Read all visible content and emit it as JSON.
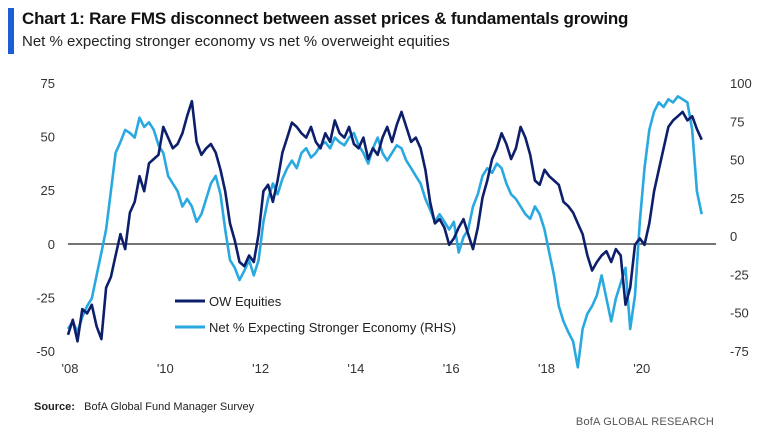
{
  "header": {
    "title": "Chart 1:  Rare FMS disconnect between asset prices & fundamentals growing",
    "subtitle": "Net % expecting stronger economy vs net % overweight equities"
  },
  "footer": {
    "source_label": "Source:",
    "source_text": "BofA Global Fund Manager Survey",
    "brand": "BofA GLOBAL RESEARCH"
  },
  "colors": {
    "accent": "#1a5fd6",
    "ow_equities": "#0d1f6b",
    "economy": "#29a9e0"
  },
  "chart_data": {
    "type": "line",
    "title": "Rare FMS disconnect between asset prices & fundamentals growing",
    "x_ticks": [
      "'08",
      "'10",
      "'12",
      "'14",
      "'16",
      "'18",
      "'20"
    ],
    "y_left_ticks": [
      "75",
      "50",
      "25",
      "0",
      "-25",
      "-50"
    ],
    "y_right_ticks": [
      "100",
      "75",
      "50",
      "25",
      "0",
      "-25",
      "-50",
      "-75"
    ],
    "ylim_left": [
      -50,
      75
    ],
    "ylim_right": [
      -75,
      100
    ],
    "xlim": [
      2008.0,
      2021.6
    ],
    "legend_position": "bottom-left",
    "grid": false,
    "series": [
      {
        "name": "OW Equities",
        "axis": "left",
        "color": "#0d1f6b",
        "points": [
          [
            2008.0,
            -42
          ],
          [
            2008.1,
            -35
          ],
          [
            2008.2,
            -45
          ],
          [
            2008.3,
            -30
          ],
          [
            2008.4,
            -32
          ],
          [
            2008.5,
            -28
          ],
          [
            2008.6,
            -38
          ],
          [
            2008.7,
            -44
          ],
          [
            2008.8,
            -20
          ],
          [
            2008.9,
            -15
          ],
          [
            2009.0,
            -5
          ],
          [
            2009.1,
            5
          ],
          [
            2009.2,
            -2
          ],
          [
            2009.3,
            15
          ],
          [
            2009.4,
            20
          ],
          [
            2009.5,
            32
          ],
          [
            2009.6,
            25
          ],
          [
            2009.7,
            38
          ],
          [
            2009.8,
            40
          ],
          [
            2009.9,
            42
          ],
          [
            2010.0,
            55
          ],
          [
            2010.1,
            50
          ],
          [
            2010.2,
            45
          ],
          [
            2010.3,
            47
          ],
          [
            2010.4,
            52
          ],
          [
            2010.5,
            60
          ],
          [
            2010.6,
            67
          ],
          [
            2010.7,
            48
          ],
          [
            2010.8,
            42
          ],
          [
            2010.9,
            45
          ],
          [
            2011.0,
            47
          ],
          [
            2011.1,
            43
          ],
          [
            2011.2,
            35
          ],
          [
            2011.3,
            25
          ],
          [
            2011.4,
            10
          ],
          [
            2011.5,
            2
          ],
          [
            2011.6,
            -8
          ],
          [
            2011.7,
            -10
          ],
          [
            2011.8,
            -5
          ],
          [
            2011.9,
            -8
          ],
          [
            2012.0,
            5
          ],
          [
            2012.1,
            25
          ],
          [
            2012.2,
            28
          ],
          [
            2012.3,
            20
          ],
          [
            2012.4,
            30
          ],
          [
            2012.5,
            43
          ],
          [
            2012.6,
            50
          ],
          [
            2012.7,
            57
          ],
          [
            2012.8,
            55
          ],
          [
            2012.9,
            52
          ],
          [
            2013.0,
            50
          ],
          [
            2013.1,
            55
          ],
          [
            2013.2,
            48
          ],
          [
            2013.3,
            45
          ],
          [
            2013.4,
            52
          ],
          [
            2013.5,
            48
          ],
          [
            2013.6,
            58
          ],
          [
            2013.7,
            52
          ],
          [
            2013.8,
            50
          ],
          [
            2013.9,
            55
          ],
          [
            2014.0,
            47
          ],
          [
            2014.1,
            45
          ],
          [
            2014.2,
            50
          ],
          [
            2014.3,
            40
          ],
          [
            2014.4,
            45
          ],
          [
            2014.5,
            42
          ],
          [
            2014.6,
            50
          ],
          [
            2014.7,
            55
          ],
          [
            2014.8,
            48
          ],
          [
            2014.9,
            56
          ],
          [
            2015.0,
            62
          ],
          [
            2015.1,
            55
          ],
          [
            2015.2,
            48
          ],
          [
            2015.3,
            50
          ],
          [
            2015.4,
            45
          ],
          [
            2015.5,
            35
          ],
          [
            2015.6,
            20
          ],
          [
            2015.7,
            10
          ],
          [
            2015.8,
            12
          ],
          [
            2015.9,
            8
          ],
          [
            2016.0,
            0
          ],
          [
            2016.1,
            3
          ],
          [
            2016.2,
            8
          ],
          [
            2016.3,
            12
          ],
          [
            2016.4,
            5
          ],
          [
            2016.5,
            -2
          ],
          [
            2016.6,
            8
          ],
          [
            2016.7,
            22
          ],
          [
            2016.8,
            30
          ],
          [
            2016.9,
            40
          ],
          [
            2017.0,
            45
          ],
          [
            2017.1,
            52
          ],
          [
            2017.2,
            47
          ],
          [
            2017.3,
            40
          ],
          [
            2017.4,
            45
          ],
          [
            2017.5,
            55
          ],
          [
            2017.6,
            50
          ],
          [
            2017.7,
            42
          ],
          [
            2017.8,
            30
          ],
          [
            2017.9,
            28
          ],
          [
            2018.0,
            35
          ],
          [
            2018.1,
            32
          ],
          [
            2018.2,
            30
          ],
          [
            2018.3,
            28
          ],
          [
            2018.4,
            20
          ],
          [
            2018.5,
            18
          ],
          [
            2018.6,
            15
          ],
          [
            2018.7,
            10
          ],
          [
            2018.8,
            5
          ],
          [
            2018.9,
            -5
          ],
          [
            2019.0,
            -12
          ],
          [
            2019.1,
            -8
          ],
          [
            2019.2,
            -5
          ],
          [
            2019.3,
            -3
          ],
          [
            2019.4,
            -8
          ],
          [
            2019.5,
            -2
          ],
          [
            2019.6,
            -5
          ],
          [
            2019.7,
            -28
          ],
          [
            2019.8,
            -20
          ],
          [
            2019.9,
            0
          ],
          [
            2020.0,
            3
          ],
          [
            2020.1,
            0
          ],
          [
            2020.2,
            10
          ],
          [
            2020.3,
            25
          ],
          [
            2020.4,
            35
          ],
          [
            2020.5,
            45
          ],
          [
            2020.6,
            55
          ],
          [
            2020.7,
            58
          ],
          [
            2020.8,
            60
          ],
          [
            2020.9,
            62
          ],
          [
            2021.0,
            58
          ],
          [
            2021.1,
            60
          ],
          [
            2021.2,
            54
          ],
          [
            2021.3,
            49
          ]
        ]
      },
      {
        "name": "Net % Expecting Stronger Economy (RHS)",
        "axis": "right",
        "color": "#29a9e0",
        "points": [
          [
            2008.0,
            -60
          ],
          [
            2008.1,
            -55
          ],
          [
            2008.2,
            -62
          ],
          [
            2008.3,
            -52
          ],
          [
            2008.4,
            -45
          ],
          [
            2008.5,
            -40
          ],
          [
            2008.6,
            -25
          ],
          [
            2008.7,
            -10
          ],
          [
            2008.8,
            5
          ],
          [
            2008.9,
            30
          ],
          [
            2009.0,
            55
          ],
          [
            2009.1,
            62
          ],
          [
            2009.2,
            70
          ],
          [
            2009.3,
            68
          ],
          [
            2009.4,
            65
          ],
          [
            2009.5,
            78
          ],
          [
            2009.6,
            72
          ],
          [
            2009.7,
            75
          ],
          [
            2009.8,
            70
          ],
          [
            2009.9,
            60
          ],
          [
            2010.0,
            55
          ],
          [
            2010.1,
            40
          ],
          [
            2010.2,
            35
          ],
          [
            2010.3,
            30
          ],
          [
            2010.4,
            20
          ],
          [
            2010.5,
            25
          ],
          [
            2010.6,
            20
          ],
          [
            2010.7,
            10
          ],
          [
            2010.8,
            15
          ],
          [
            2010.9,
            25
          ],
          [
            2011.0,
            35
          ],
          [
            2011.1,
            40
          ],
          [
            2011.2,
            28
          ],
          [
            2011.3,
            5
          ],
          [
            2011.4,
            -15
          ],
          [
            2011.5,
            -20
          ],
          [
            2011.6,
            -28
          ],
          [
            2011.7,
            -22
          ],
          [
            2011.8,
            -15
          ],
          [
            2011.9,
            -25
          ],
          [
            2012.0,
            -15
          ],
          [
            2012.1,
            10
          ],
          [
            2012.2,
            25
          ],
          [
            2012.3,
            35
          ],
          [
            2012.4,
            28
          ],
          [
            2012.5,
            38
          ],
          [
            2012.6,
            45
          ],
          [
            2012.7,
            50
          ],
          [
            2012.8,
            45
          ],
          [
            2012.9,
            55
          ],
          [
            2013.0,
            58
          ],
          [
            2013.1,
            52
          ],
          [
            2013.2,
            55
          ],
          [
            2013.3,
            60
          ],
          [
            2013.4,
            62
          ],
          [
            2013.5,
            58
          ],
          [
            2013.6,
            65
          ],
          [
            2013.7,
            62
          ],
          [
            2013.8,
            60
          ],
          [
            2013.9,
            65
          ],
          [
            2014.0,
            68
          ],
          [
            2014.1,
            60
          ],
          [
            2014.2,
            55
          ],
          [
            2014.3,
            48
          ],
          [
            2014.4,
            58
          ],
          [
            2014.5,
            65
          ],
          [
            2014.6,
            55
          ],
          [
            2014.7,
            50
          ],
          [
            2014.8,
            55
          ],
          [
            2014.9,
            60
          ],
          [
            2015.0,
            58
          ],
          [
            2015.1,
            50
          ],
          [
            2015.2,
            45
          ],
          [
            2015.3,
            40
          ],
          [
            2015.4,
            35
          ],
          [
            2015.5,
            25
          ],
          [
            2015.6,
            18
          ],
          [
            2015.7,
            10
          ],
          [
            2015.8,
            15
          ],
          [
            2015.9,
            10
          ],
          [
            2016.0,
            5
          ],
          [
            2016.1,
            10
          ],
          [
            2016.2,
            -10
          ],
          [
            2016.3,
            0
          ],
          [
            2016.4,
            5
          ],
          [
            2016.5,
            20
          ],
          [
            2016.6,
            28
          ],
          [
            2016.7,
            40
          ],
          [
            2016.8,
            45
          ],
          [
            2016.9,
            42
          ],
          [
            2017.0,
            48
          ],
          [
            2017.1,
            45
          ],
          [
            2017.2,
            35
          ],
          [
            2017.3,
            28
          ],
          [
            2017.4,
            25
          ],
          [
            2017.5,
            20
          ],
          [
            2017.6,
            15
          ],
          [
            2017.7,
            12
          ],
          [
            2017.8,
            20
          ],
          [
            2017.9,
            15
          ],
          [
            2018.0,
            5
          ],
          [
            2018.1,
            -10
          ],
          [
            2018.2,
            -25
          ],
          [
            2018.3,
            -45
          ],
          [
            2018.4,
            -55
          ],
          [
            2018.5,
            -62
          ],
          [
            2018.6,
            -68
          ],
          [
            2018.7,
            -85
          ],
          [
            2018.8,
            -60
          ],
          [
            2018.9,
            -50
          ],
          [
            2019.0,
            -45
          ],
          [
            2019.1,
            -38
          ],
          [
            2019.2,
            -25
          ],
          [
            2019.3,
            -40
          ],
          [
            2019.4,
            -55
          ],
          [
            2019.5,
            -40
          ],
          [
            2019.6,
            -30
          ],
          [
            2019.7,
            -20
          ],
          [
            2019.8,
            -60
          ],
          [
            2019.9,
            -38
          ],
          [
            2020.0,
            10
          ],
          [
            2020.1,
            45
          ],
          [
            2020.2,
            70
          ],
          [
            2020.3,
            82
          ],
          [
            2020.4,
            88
          ],
          [
            2020.5,
            85
          ],
          [
            2020.6,
            90
          ],
          [
            2020.7,
            88
          ],
          [
            2020.8,
            92
          ],
          [
            2020.9,
            90
          ],
          [
            2021.0,
            88
          ],
          [
            2021.1,
            70
          ],
          [
            2021.2,
            30
          ],
          [
            2021.3,
            15
          ]
        ]
      }
    ]
  }
}
